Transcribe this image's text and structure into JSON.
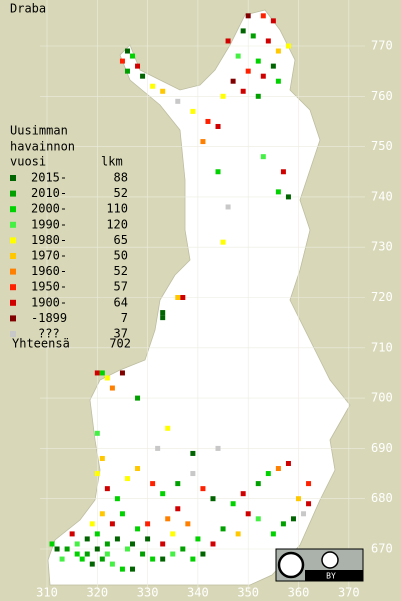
{
  "title": "Draba",
  "legend": {
    "heading": [
      "Uusimman",
      "havainnon",
      "vuosi"
    ],
    "count_heading": "lkm",
    "entries": [
      {
        "label": "2015-",
        "count": 88,
        "color": "#006400"
      },
      {
        "label": "2010-",
        "count": 52,
        "color": "#00a000"
      },
      {
        "label": "2000-",
        "count": 110,
        "color": "#00d200"
      },
      {
        "label": "1990-",
        "count": 120,
        "color": "#44f044"
      },
      {
        "label": "1980-",
        "count": 65,
        "color": "#ffff00"
      },
      {
        "label": "1970-",
        "count": 50,
        "color": "#ffc800"
      },
      {
        "label": "1960-",
        "count": 52,
        "color": "#ff8000"
      },
      {
        "label": "1950-",
        "count": 57,
        "color": "#ff2000"
      },
      {
        "label": "1900-",
        "count": 64,
        "color": "#d00000"
      },
      {
        "label": "-1899",
        "count": 7,
        "color": "#800000"
      },
      {
        "label": "???",
        "count": 37,
        "color": "#c8c8c8"
      }
    ],
    "total_label": "Yhteensä",
    "total": 702
  },
  "axes": {
    "x_ticks": [
      310,
      320,
      330,
      340,
      350,
      360,
      370
    ],
    "y_ticks": [
      670,
      680,
      690,
      700,
      710,
      720,
      730,
      740,
      750,
      760,
      770
    ]
  },
  "license": "BY",
  "observations": [
    [
      350,
      776,
      9
    ],
    [
      353,
      776,
      7
    ],
    [
      355,
      775,
      8
    ],
    [
      349,
      773,
      0
    ],
    [
      351,
      772,
      1
    ],
    [
      354,
      771,
      8
    ],
    [
      356,
      769,
      5
    ],
    [
      346,
      771,
      8
    ],
    [
      358,
      770,
      4
    ],
    [
      348,
      768,
      3
    ],
    [
      352,
      767,
      2
    ],
    [
      355,
      766,
      0
    ],
    [
      350,
      765,
      7
    ],
    [
      353,
      764,
      8
    ],
    [
      347,
      763,
      9
    ],
    [
      356,
      763,
      2
    ],
    [
      349,
      761,
      8
    ],
    [
      352,
      760,
      1
    ],
    [
      345,
      760,
      4
    ],
    [
      326,
      769,
      0
    ],
    [
      327,
      768,
      2
    ],
    [
      325,
      767,
      7
    ],
    [
      328,
      766,
      8
    ],
    [
      326,
      765,
      1
    ],
    [
      329,
      764,
      0
    ],
    [
      331,
      762,
      4
    ],
    [
      333,
      761,
      5
    ],
    [
      336,
      759,
      10
    ],
    [
      339,
      757,
      4
    ],
    [
      342,
      755,
      7
    ],
    [
      344,
      754,
      8
    ],
    [
      341,
      751,
      6
    ],
    [
      344,
      745,
      2
    ],
    [
      357,
      745,
      8
    ],
    [
      353,
      748,
      3
    ],
    [
      346,
      738,
      10
    ],
    [
      356,
      741,
      2
    ],
    [
      358,
      740,
      0
    ],
    [
      345,
      731,
      4
    ],
    [
      336,
      720,
      5
    ],
    [
      337,
      720,
      8
    ],
    [
      333,
      717,
      0
    ],
    [
      333,
      716,
      0
    ],
    [
      320,
      705,
      8
    ],
    [
      321,
      705,
      2
    ],
    [
      322,
      704,
      4
    ],
    [
      325,
      705,
      9
    ],
    [
      323,
      702,
      6
    ],
    [
      328,
      700,
      1
    ],
    [
      320,
      693,
      3
    ],
    [
      321,
      688,
      5
    ],
    [
      320,
      685,
      4
    ],
    [
      322,
      682,
      8
    ],
    [
      324,
      680,
      2
    ],
    [
      326,
      684,
      4
    ],
    [
      328,
      686,
      5
    ],
    [
      331,
      683,
      7
    ],
    [
      333,
      681,
      2
    ],
    [
      336,
      683,
      1
    ],
    [
      339,
      685,
      10
    ],
    [
      341,
      682,
      7
    ],
    [
      343,
      680,
      0
    ],
    [
      347,
      679,
      2
    ],
    [
      349,
      681,
      8
    ],
    [
      352,
      683,
      1
    ],
    [
      354,
      685,
      2
    ],
    [
      356,
      686,
      6
    ],
    [
      358,
      687,
      8
    ],
    [
      360,
      680,
      5
    ],
    [
      362,
      679,
      8
    ],
    [
      361,
      677,
      10
    ],
    [
      359,
      676,
      0
    ],
    [
      352,
      676,
      3
    ],
    [
      350,
      677,
      8
    ],
    [
      345,
      674,
      1
    ],
    [
      340,
      672,
      2
    ],
    [
      338,
      675,
      6
    ],
    [
      335,
      673,
      4
    ],
    [
      333,
      671,
      8
    ],
    [
      330,
      672,
      0
    ],
    [
      328,
      674,
      2
    ],
    [
      326,
      670,
      3
    ],
    [
      324,
      672,
      0
    ],
    [
      322,
      671,
      1
    ],
    [
      320,
      673,
      2
    ],
    [
      318,
      672,
      0
    ],
    [
      316,
      671,
      3
    ],
    [
      314,
      670,
      1
    ],
    [
      312,
      670,
      0
    ],
    [
      311,
      671,
      2
    ],
    [
      315,
      673,
      8
    ],
    [
      319,
      675,
      4
    ],
    [
      321,
      677,
      5
    ],
    [
      323,
      675,
      8
    ],
    [
      325,
      677,
      2
    ],
    [
      327,
      671,
      0
    ],
    [
      329,
      669,
      1
    ],
    [
      331,
      668,
      2
    ],
    [
      333,
      668,
      0
    ],
    [
      335,
      669,
      3
    ],
    [
      337,
      670,
      1
    ],
    [
      339,
      668,
      2
    ],
    [
      341,
      669,
      0
    ],
    [
      343,
      671,
      8
    ],
    [
      317,
      668,
      2
    ],
    [
      319,
      667,
      0
    ],
    [
      321,
      668,
      1
    ],
    [
      323,
      667,
      3
    ],
    [
      325,
      666,
      2
    ],
    [
      327,
      666,
      0
    ],
    [
      322,
      669,
      3
    ],
    [
      320,
      670,
      0
    ],
    [
      318,
      669,
      1
    ],
    [
      316,
      669,
      2
    ],
    [
      313,
      668,
      3
    ],
    [
      330,
      675,
      7
    ],
    [
      334,
      676,
      6
    ],
    [
      336,
      678,
      8
    ],
    [
      348,
      673,
      5
    ],
    [
      355,
      673,
      2
    ],
    [
      357,
      675,
      1
    ],
    [
      344,
      690,
      10
    ],
    [
      332,
      690,
      10
    ],
    [
      334,
      694,
      4
    ],
    [
      339,
      689,
      0
    ],
    [
      362,
      683,
      7
    ]
  ]
}
